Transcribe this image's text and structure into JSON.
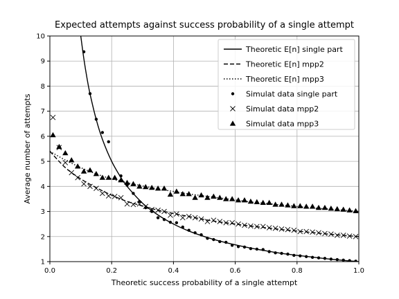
{
  "chart_data": {
    "type": "line",
    "title": "Expected attempts against success probability of a single attempt",
    "xlabel": "Theoretic success probability of a single attempt",
    "ylabel": "Average number of attempts",
    "xlim": [
      0.0,
      1.0
    ],
    "ylim": [
      1,
      10
    ],
    "xticks": [
      "0.0",
      "0.2",
      "0.4",
      "0.6",
      "0.8",
      "1.0"
    ],
    "yticks": [
      "1",
      "2",
      "3",
      "4",
      "5",
      "6",
      "7",
      "8",
      "9",
      "10"
    ],
    "grid": true,
    "legend_position": "top-right",
    "theoretic_series": [
      {
        "name": "Theoretic $E[n]$ single part",
        "legend_label": "Theoretic E[n] single part",
        "style": "solid",
        "x": [
          0.1,
          0.11,
          0.12,
          0.13,
          0.15,
          0.17,
          0.2,
          0.23,
          0.25,
          0.3,
          0.35,
          0.4,
          0.45,
          0.5,
          0.55,
          0.6,
          0.65,
          0.7,
          0.75,
          0.8,
          0.85,
          0.9,
          0.95,
          1.0
        ],
        "y": [
          10.0,
          9.09,
          8.33,
          7.69,
          6.67,
          5.88,
          5.0,
          4.35,
          4.0,
          3.33,
          2.86,
          2.5,
          2.22,
          2.0,
          1.82,
          1.67,
          1.54,
          1.43,
          1.33,
          1.25,
          1.18,
          1.11,
          1.05,
          1.0
        ]
      },
      {
        "name": "Theoretic $E[n]$ mpp2",
        "legend_label": "Theoretic E[n] mpp2",
        "style": "dashed",
        "x": [
          0.0,
          0.05,
          0.1,
          0.15,
          0.2,
          0.25,
          0.3,
          0.35,
          0.4,
          0.45,
          0.5,
          0.55,
          0.6,
          0.65,
          0.7,
          0.75,
          0.8,
          0.85,
          0.9,
          0.95,
          1.0
        ],
        "y": [
          5.4,
          4.75,
          4.3,
          3.95,
          3.65,
          3.4,
          3.22,
          3.05,
          2.92,
          2.8,
          2.68,
          2.58,
          2.5,
          2.42,
          2.35,
          2.28,
          2.22,
          2.16,
          2.1,
          2.05,
          2.0
        ]
      },
      {
        "name": "Theoretic $E[n]$ mpp3",
        "legend_label": "Theoretic E[n] mpp3",
        "style": "dotted",
        "x": [
          0.0,
          0.05,
          0.1,
          0.15,
          0.2,
          0.25,
          0.3,
          0.35,
          0.4,
          0.45,
          0.5,
          0.55,
          0.6,
          0.65,
          0.7,
          0.75,
          0.8,
          0.85,
          0.9,
          0.95,
          1.0
        ],
        "y": [
          5.4,
          5.05,
          4.75,
          4.5,
          4.3,
          4.15,
          4.02,
          3.9,
          3.8,
          3.7,
          3.62,
          3.54,
          3.46,
          3.38,
          3.32,
          3.26,
          3.2,
          3.14,
          3.1,
          3.05,
          3.0
        ]
      }
    ],
    "simulated_series": [
      {
        "name": "Simulat data single part",
        "marker": "dot",
        "x": [
          0.11,
          0.13,
          0.15,
          0.17,
          0.19,
          0.23,
          0.25,
          0.27,
          0.29,
          0.31,
          0.33,
          0.35,
          0.37,
          0.39,
          0.41,
          0.43,
          0.45,
          0.47,
          0.49,
          0.51,
          0.53,
          0.55,
          0.57,
          0.59,
          0.61,
          0.63,
          0.65,
          0.67,
          0.69,
          0.71,
          0.73,
          0.75,
          0.77,
          0.79,
          0.81,
          0.83,
          0.85,
          0.87,
          0.89,
          0.91,
          0.93,
          0.95,
          0.97,
          0.99
        ],
        "y": [
          9.37,
          7.7,
          6.68,
          6.15,
          5.78,
          4.42,
          4.05,
          3.72,
          3.4,
          3.15,
          3.0,
          2.75,
          2.68,
          2.57,
          2.55,
          2.38,
          2.25,
          2.15,
          2.07,
          1.93,
          1.88,
          1.8,
          1.77,
          1.65,
          1.6,
          1.58,
          1.52,
          1.5,
          1.48,
          1.4,
          1.35,
          1.33,
          1.3,
          1.25,
          1.23,
          1.2,
          1.17,
          1.15,
          1.13,
          1.1,
          1.08,
          1.06,
          1.04,
          1.02
        ]
      },
      {
        "name": "Simulat data mpp2",
        "marker": "x",
        "x": [
          0.01,
          0.03,
          0.05,
          0.07,
          0.09,
          0.11,
          0.13,
          0.15,
          0.17,
          0.19,
          0.21,
          0.23,
          0.25,
          0.27,
          0.29,
          0.31,
          0.33,
          0.35,
          0.37,
          0.39,
          0.41,
          0.43,
          0.45,
          0.47,
          0.49,
          0.51,
          0.53,
          0.55,
          0.57,
          0.59,
          0.61,
          0.63,
          0.65,
          0.67,
          0.69,
          0.71,
          0.73,
          0.75,
          0.77,
          0.79,
          0.81,
          0.83,
          0.85,
          0.87,
          0.89,
          0.91,
          0.93,
          0.95,
          0.97,
          0.99
        ],
        "y": [
          6.75,
          5.55,
          4.95,
          4.55,
          4.35,
          4.1,
          4.0,
          3.92,
          3.72,
          3.62,
          3.6,
          3.55,
          3.3,
          3.28,
          3.3,
          3.2,
          3.08,
          3.05,
          3.0,
          2.85,
          2.9,
          2.75,
          2.8,
          2.75,
          2.7,
          2.6,
          2.65,
          2.6,
          2.55,
          2.55,
          2.5,
          2.45,
          2.42,
          2.4,
          2.4,
          2.35,
          2.33,
          2.3,
          2.28,
          2.25,
          2.2,
          2.2,
          2.18,
          2.15,
          2.12,
          2.1,
          2.05,
          2.05,
          2.02,
          2.0
        ]
      },
      {
        "name": "Simulat data mpp3",
        "marker": "triangle",
        "x": [
          0.01,
          0.03,
          0.05,
          0.07,
          0.09,
          0.11,
          0.13,
          0.15,
          0.17,
          0.19,
          0.21,
          0.23,
          0.25,
          0.27,
          0.29,
          0.31,
          0.33,
          0.35,
          0.37,
          0.39,
          0.41,
          0.43,
          0.45,
          0.47,
          0.49,
          0.51,
          0.53,
          0.55,
          0.57,
          0.59,
          0.61,
          0.63,
          0.65,
          0.67,
          0.69,
          0.71,
          0.73,
          0.75,
          0.77,
          0.79,
          0.81,
          0.83,
          0.85,
          0.87,
          0.89,
          0.91,
          0.93,
          0.95,
          0.97,
          0.99
        ],
        "y": [
          6.05,
          5.58,
          5.33,
          5.05,
          4.8,
          4.6,
          4.65,
          4.5,
          4.35,
          4.35,
          4.35,
          4.25,
          4.15,
          4.1,
          4.0,
          3.98,
          3.95,
          3.92,
          3.92,
          3.68,
          3.8,
          3.7,
          3.7,
          3.55,
          3.65,
          3.55,
          3.6,
          3.55,
          3.5,
          3.5,
          3.45,
          3.45,
          3.4,
          3.38,
          3.35,
          3.35,
          3.28,
          3.28,
          3.25,
          3.22,
          3.22,
          3.2,
          3.2,
          3.15,
          3.15,
          3.12,
          3.1,
          3.08,
          3.05,
          3.02
        ]
      }
    ]
  }
}
